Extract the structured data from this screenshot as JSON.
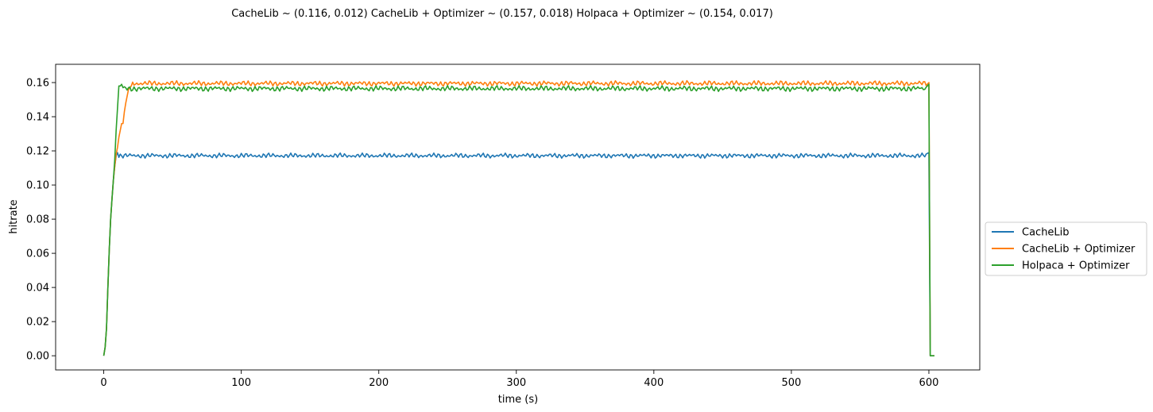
{
  "chart_data": {
    "type": "line",
    "title": "CacheLib ~ (0.116, 0.012)   CacheLib + Optimizer ~ (0.157, 0.018)   Holpaca + Optimizer ~ (0.154, 0.017)",
    "xlabel": "time (s)",
    "ylabel": "hitrate",
    "xlim": [
      -35,
      637
    ],
    "ylim": [
      -0.0083,
      0.1707
    ],
    "x_ticks": [
      0,
      100,
      200,
      300,
      400,
      500,
      600
    ],
    "x_tick_labels": [
      "0",
      "100",
      "200",
      "300",
      "400",
      "500",
      "600"
    ],
    "y_ticks": [
      0.0,
      0.02,
      0.04,
      0.06,
      0.08,
      0.1,
      0.12,
      0.14,
      0.16
    ],
    "y_tick_labels": [
      "0.00",
      "0.02",
      "0.04",
      "0.06",
      "0.08",
      "0.10",
      "0.12",
      "0.14",
      "0.16"
    ],
    "grid": false,
    "legend_position": "right, outside plot area",
    "series": [
      {
        "name": "CacheLib",
        "color": "#1f77b4",
        "ramp": [
          [
            0,
            0.0
          ],
          [
            1,
            0.005
          ],
          [
            2,
            0.016
          ],
          [
            3,
            0.04
          ],
          [
            4,
            0.062
          ],
          [
            5,
            0.08
          ],
          [
            6,
            0.092
          ],
          [
            7,
            0.103
          ],
          [
            8,
            0.111
          ],
          [
            9,
            0.117
          ],
          [
            10,
            0.119
          ]
        ],
        "plateau_mean": 0.1172,
        "plateau_amplitude": 0.0015,
        "plateau_end": 599,
        "drop": [
          [
            600,
            0.119
          ],
          [
            601,
            0.0
          ],
          [
            604,
            0.0
          ]
        ]
      },
      {
        "name": "CacheLib + Optimizer",
        "color": "#ff7f0e",
        "ramp": [
          [
            0,
            0.0
          ],
          [
            1,
            0.005
          ],
          [
            2,
            0.016
          ],
          [
            3,
            0.04
          ],
          [
            4,
            0.062
          ],
          [
            5,
            0.08
          ],
          [
            6,
            0.092
          ],
          [
            7,
            0.103
          ],
          [
            8,
            0.111
          ],
          [
            9,
            0.118
          ],
          [
            10,
            0.122
          ],
          [
            11,
            0.128
          ],
          [
            12,
            0.132
          ],
          [
            13,
            0.136
          ],
          [
            14,
            0.136
          ],
          [
            15,
            0.143
          ],
          [
            16,
            0.148
          ],
          [
            17,
            0.152
          ],
          [
            18,
            0.156
          ],
          [
            19,
            0.157
          ],
          [
            20,
            0.158
          ]
        ],
        "plateau_mean": 0.1595,
        "plateau_amplitude": 0.0016,
        "plateau_end": 599,
        "drop": [
          [
            600,
            0.16
          ],
          [
            601,
            0.0
          ],
          [
            604,
            0.0
          ]
        ]
      },
      {
        "name": "Holpaca + Optimizer",
        "color": "#2ca02c",
        "ramp": [
          [
            0,
            0.0
          ],
          [
            1,
            0.005
          ],
          [
            2,
            0.016
          ],
          [
            3,
            0.04
          ],
          [
            4,
            0.062
          ],
          [
            5,
            0.08
          ],
          [
            6,
            0.092
          ],
          [
            7,
            0.103
          ],
          [
            8,
            0.115
          ],
          [
            9,
            0.132
          ],
          [
            10,
            0.145
          ],
          [
            11,
            0.158
          ],
          [
            12,
            0.158
          ],
          [
            13,
            0.159
          ],
          [
            14,
            0.157
          ]
        ],
        "plateau_mean": 0.1565,
        "plateau_amplitude": 0.0017,
        "plateau_end": 599,
        "drop": [
          [
            600,
            0.159
          ],
          [
            601,
            0.0
          ],
          [
            604,
            0.0
          ]
        ]
      }
    ]
  }
}
